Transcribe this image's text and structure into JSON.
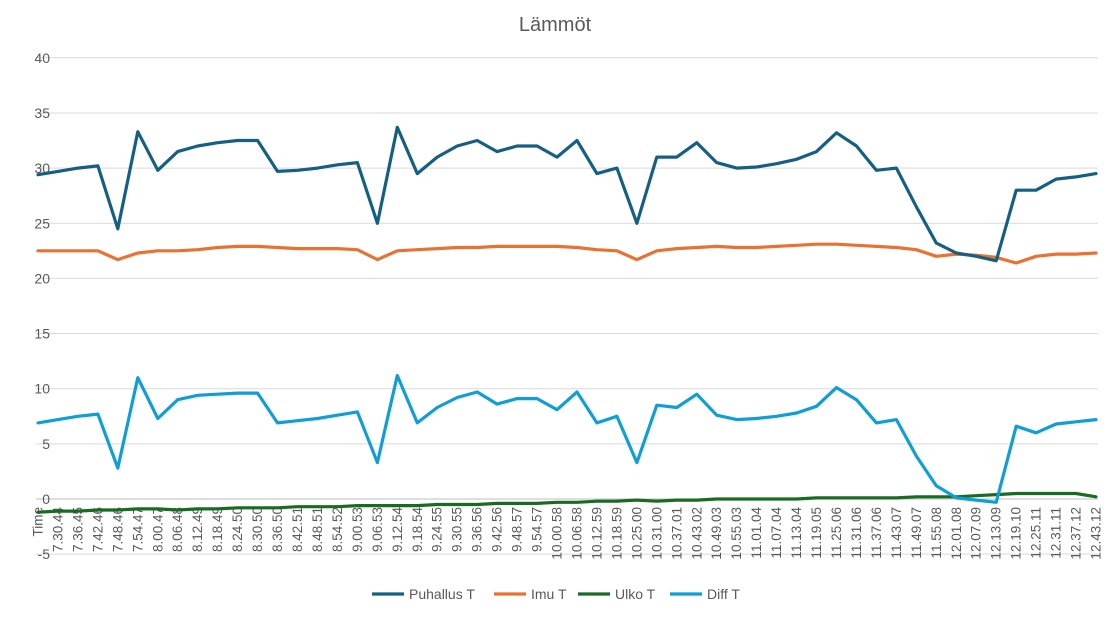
{
  "chart_data": {
    "type": "line",
    "title": "Lämmöt",
    "xlabel": "",
    "ylabel": "",
    "ylim": [
      -5,
      40
    ],
    "yticks": [
      -5,
      0,
      5,
      10,
      15,
      20,
      25,
      30,
      35,
      40
    ],
    "grid": true,
    "legend_position": "bottom",
    "categories": [
      "Time",
      "7.30.44",
      "7.36.45",
      "7.42.46",
      "7.48.46",
      "7.54.47",
      "8.00.47",
      "8.06.48",
      "8.12.49",
      "8.18.49",
      "8.24.50",
      "8.30.50",
      "8.36.50",
      "8.42.51",
      "8.48.51",
      "8.54.52",
      "9.00.53",
      "9.06.53",
      "9.12.54",
      "9.18.54",
      "9.24.55",
      "9.30.55",
      "9.36.56",
      "9.42.56",
      "9.48.57",
      "9.54.57",
      "10.00.58",
      "10.06.58",
      "10.12.59",
      "10.18.59",
      "10.25.00",
      "10.31.00",
      "10.37.01",
      "10.43.02",
      "10.49.03",
      "10.55.03",
      "11.01.04",
      "11.07.04",
      "11.13.04",
      "11.19.05",
      "11.25.06",
      "11.31.06",
      "11.37.06",
      "11.43.07",
      "11.49.07",
      "11.55.08",
      "12.01.08",
      "12.07.09",
      "12.13.09",
      "12.19.10",
      "12.25.11",
      "12.31.11",
      "12.37.12",
      "12.43.12"
    ],
    "series": [
      {
        "name": "Puhallus T",
        "color": "#156082",
        "values": [
          29.4,
          29.7,
          30.0,
          30.2,
          24.5,
          33.3,
          29.8,
          31.5,
          32.0,
          32.3,
          32.5,
          32.5,
          29.7,
          29.8,
          30.0,
          30.3,
          30.5,
          25.0,
          33.7,
          29.5,
          31.0,
          32.0,
          32.5,
          31.5,
          32.0,
          32.0,
          31.0,
          32.5,
          29.5,
          30.0,
          25.0,
          31.0,
          31.0,
          32.3,
          30.5,
          30.0,
          30.1,
          30.4,
          30.8,
          31.5,
          33.2,
          32.0,
          29.8,
          30.0,
          26.5,
          23.2,
          22.3,
          22.0,
          21.6,
          28.0,
          28.0,
          29.0,
          29.2,
          29.5
        ]
      },
      {
        "name": "Imu T",
        "color": "#E97132",
        "values": [
          22.5,
          22.5,
          22.5,
          22.5,
          21.7,
          22.3,
          22.5,
          22.5,
          22.6,
          22.8,
          22.9,
          22.9,
          22.8,
          22.7,
          22.7,
          22.7,
          22.6,
          21.7,
          22.5,
          22.6,
          22.7,
          22.8,
          22.8,
          22.9,
          22.9,
          22.9,
          22.9,
          22.8,
          22.6,
          22.5,
          21.7,
          22.5,
          22.7,
          22.8,
          22.9,
          22.8,
          22.8,
          22.9,
          23.0,
          23.1,
          23.1,
          23.0,
          22.9,
          22.8,
          22.6,
          22.0,
          22.2,
          22.1,
          21.9,
          21.4,
          22.0,
          22.2,
          22.2,
          22.3
        ]
      },
      {
        "name": "Ulko T",
        "color": "#196B24",
        "values": [
          -1.2,
          -1.1,
          -1.1,
          -1.0,
          -1.0,
          -0.9,
          -0.9,
          -1.0,
          -0.9,
          -0.9,
          -0.8,
          -0.8,
          -0.8,
          -0.7,
          -0.7,
          -0.7,
          -0.6,
          -0.6,
          -0.6,
          -0.6,
          -0.5,
          -0.5,
          -0.5,
          -0.4,
          -0.4,
          -0.4,
          -0.3,
          -0.3,
          -0.2,
          -0.2,
          -0.1,
          -0.2,
          -0.1,
          -0.1,
          0.0,
          0.0,
          0.0,
          0.0,
          0.0,
          0.1,
          0.1,
          0.1,
          0.1,
          0.1,
          0.2,
          0.2,
          0.2,
          0.3,
          0.4,
          0.5,
          0.5,
          0.5,
          0.5,
          0.2
        ]
      },
      {
        "name": "Diff T",
        "color": "#0F9ED5",
        "values": [
          6.9,
          7.2,
          7.5,
          7.7,
          2.8,
          11.0,
          7.3,
          9.0,
          9.4,
          9.5,
          9.6,
          9.6,
          6.9,
          7.1,
          7.3,
          7.6,
          7.9,
          3.3,
          11.2,
          6.9,
          8.3,
          9.2,
          9.7,
          8.6,
          9.1,
          9.1,
          8.1,
          9.7,
          6.9,
          7.5,
          3.3,
          8.5,
          8.3,
          9.5,
          7.6,
          7.2,
          7.3,
          7.5,
          7.8,
          8.4,
          10.1,
          9.0,
          6.9,
          7.2,
          3.9,
          1.2,
          0.1,
          -0.1,
          -0.3,
          6.6,
          6.0,
          6.8,
          7.0,
          7.2
        ]
      }
    ]
  }
}
